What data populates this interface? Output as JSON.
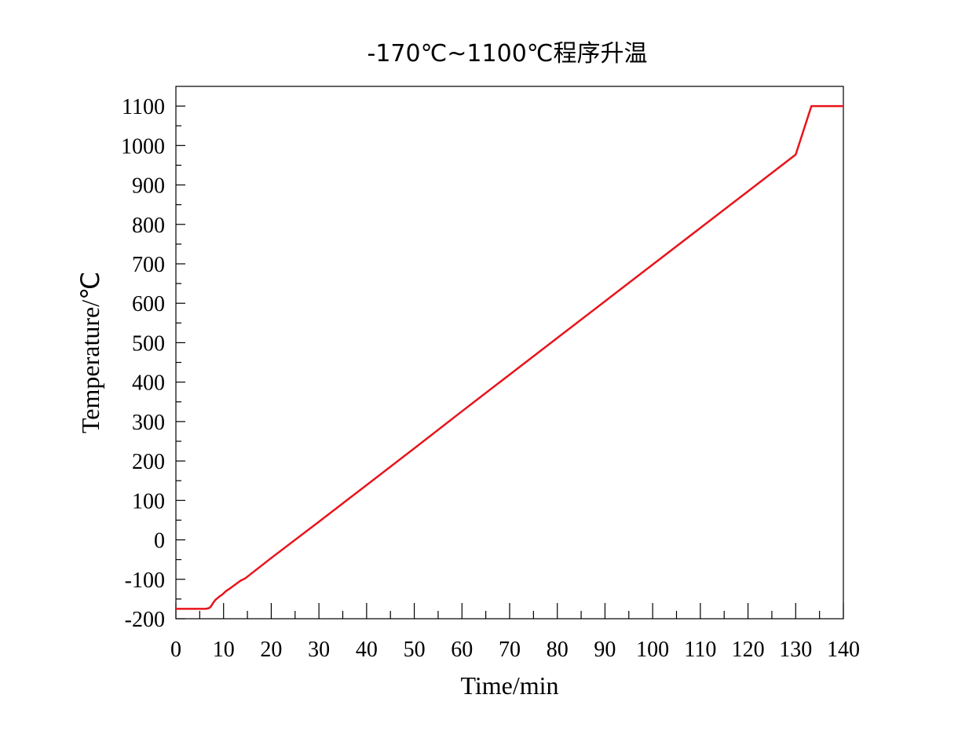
{
  "chart_data": {
    "type": "line",
    "title": "-170℃~1100℃程序升温",
    "xlabel": "Time/min",
    "ylabel": "Temperature/℃",
    "xlim": [
      0,
      140
    ],
    "ylim": [
      -200,
      1100
    ],
    "x_ticks": [
      "0",
      "10",
      "20",
      "30",
      "40",
      "50",
      "60",
      "70",
      "80",
      "90",
      "100",
      "110",
      "120",
      "130",
      "140"
    ],
    "y_ticks": [
      "-200",
      "-100",
      "0",
      "100",
      "200",
      "300",
      "400",
      "500",
      "600",
      "700",
      "800",
      "900",
      "1000",
      "1100"
    ],
    "grid": false,
    "series": [
      {
        "color": "#e8141b",
        "x": [
          0,
          6.3,
          7.0,
          7.4,
          7.8,
          8.3,
          9.0,
          9.8,
          10.5,
          11.5,
          12.5,
          13.5,
          14.5,
          20,
          30,
          40,
          50,
          60,
          70,
          80,
          90,
          100,
          110,
          120,
          130,
          133.3,
          135,
          140
        ],
        "y": [
          -175,
          -175,
          -173,
          -168,
          -160,
          -152,
          -145,
          -138,
          -130,
          -122,
          -113,
          -104,
          -98,
          -46,
          46,
          139,
          232,
          326,
          419,
          512,
          605,
          698,
          791,
          884,
          977,
          1100,
          1100,
          1100
        ]
      }
    ]
  }
}
